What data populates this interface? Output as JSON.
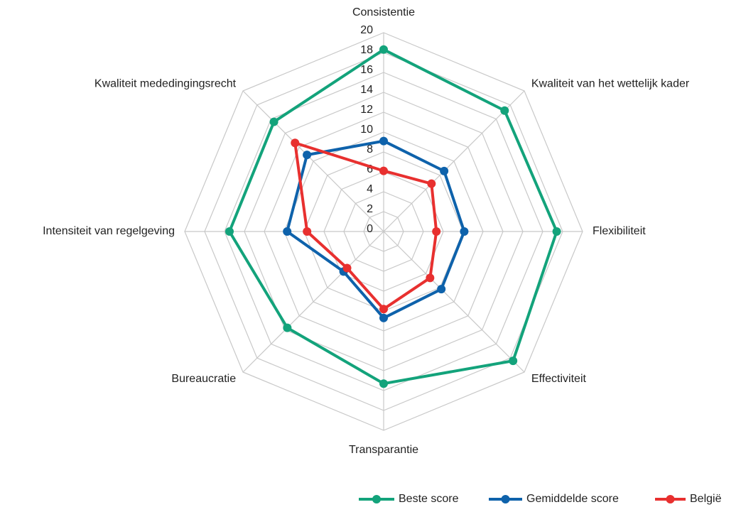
{
  "chart_data": {
    "type": "radar",
    "categories": [
      "Consistentie",
      "Kwaliteit van het wettelijk kader",
      "Flexibiliteit",
      "Effectiviteit",
      "Transparantie",
      "Bureaucratie",
      "Intensiteit van regelgeving",
      "Kwaliteit mededingingsrecht"
    ],
    "series": [
      {
        "name": "Beste score",
        "color": "#13a37b",
        "values": [
          18.3,
          17.2,
          17.4,
          18.4,
          15.3,
          13.7,
          15.5,
          15.6
        ]
      },
      {
        "name": "Gemiddelde score",
        "color": "#0e62ab",
        "values": [
          9.1,
          8.6,
          8.1,
          8.2,
          8.7,
          5.7,
          9.7,
          10.9
        ]
      },
      {
        "name": "België",
        "color": "#e8302f",
        "values": [
          6.1,
          6.8,
          5.3,
          6.6,
          7.8,
          5.2,
          7.7,
          12.6
        ]
      }
    ],
    "rlim": [
      0,
      20
    ],
    "rticks": [
      0,
      2,
      4,
      6,
      8,
      10,
      12,
      14,
      16,
      18,
      20
    ],
    "grid": true,
    "legend": "bottom-right"
  }
}
